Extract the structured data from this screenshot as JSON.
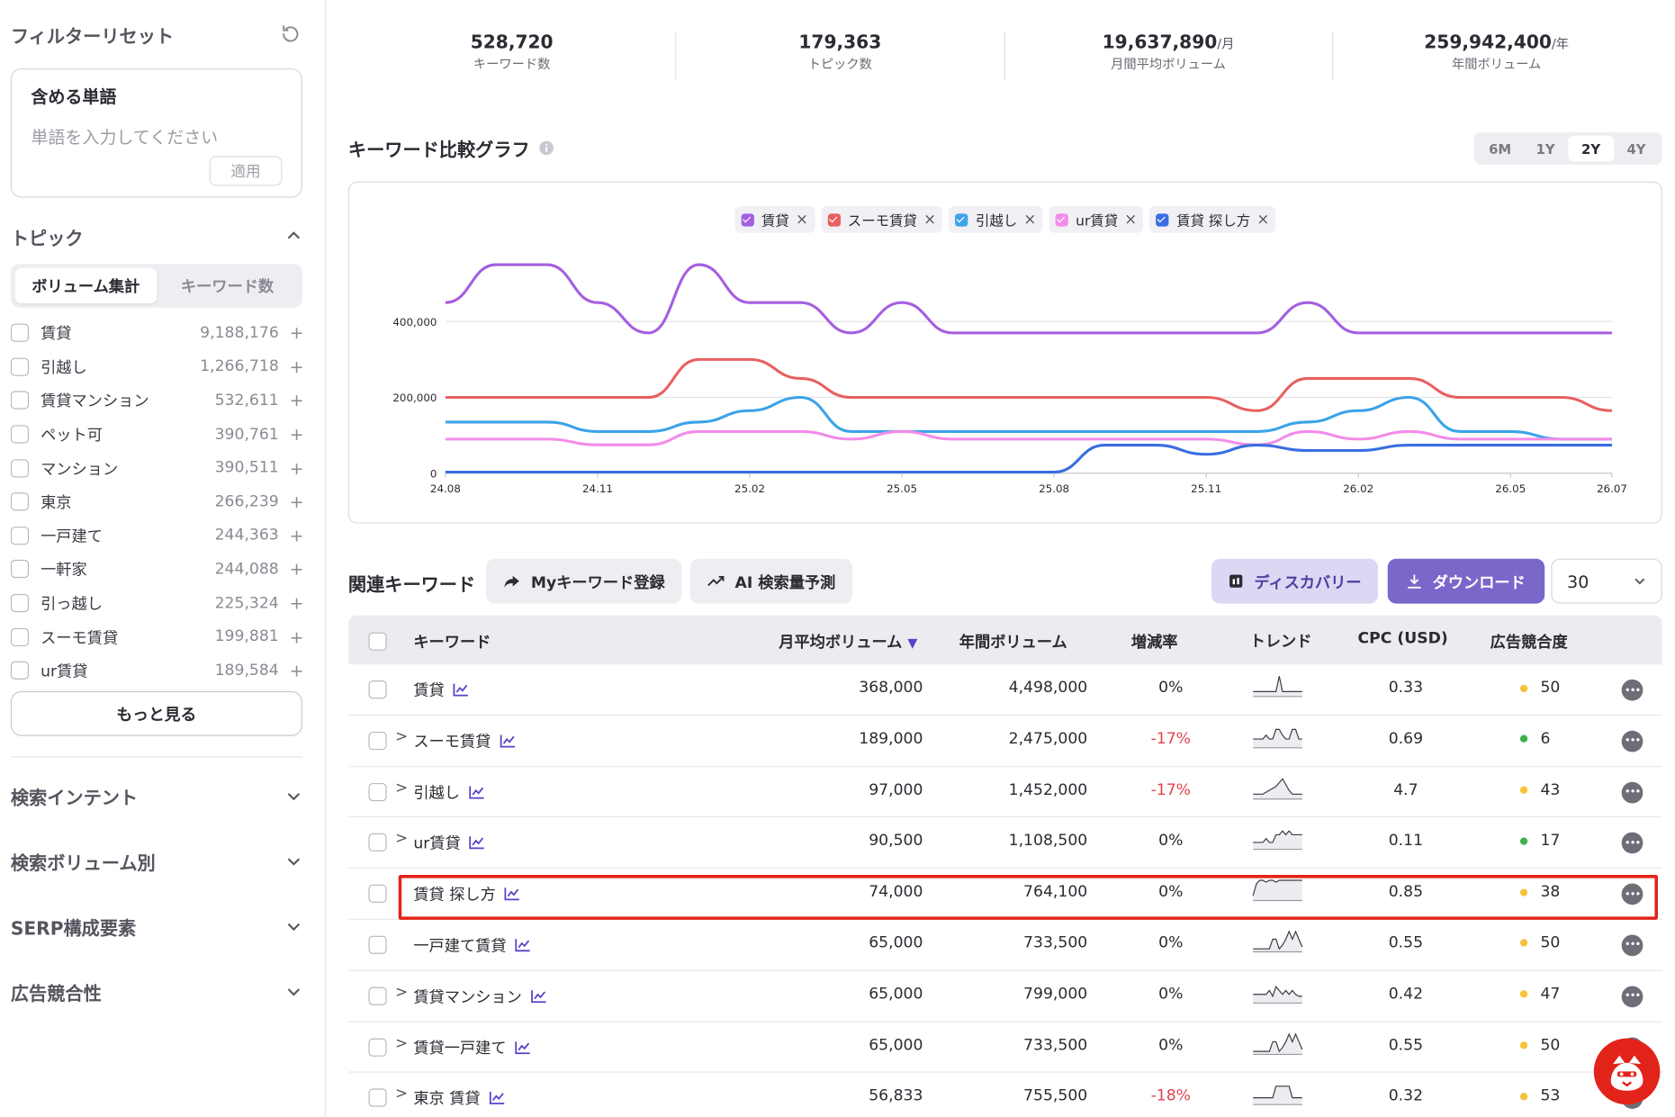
{
  "sidebar": {
    "title": "フィルターリセット",
    "include": {
      "label": "含める単語",
      "placeholder": "単語を入力してください",
      "apply": "適用"
    },
    "topic": {
      "title": "トピック",
      "tabs": [
        "ボリューム集計",
        "キーワード数"
      ],
      "items": [
        {
          "name": "賃貸",
          "count": "9,188,176"
        },
        {
          "name": "引越し",
          "count": "1,266,718"
        },
        {
          "name": "賃貸マンション",
          "count": "532,611"
        },
        {
          "name": "ペット可",
          "count": "390,761"
        },
        {
          "name": "マンション",
          "count": "390,511"
        },
        {
          "name": "東京",
          "count": "266,239"
        },
        {
          "name": "一戸建て",
          "count": "244,363"
        },
        {
          "name": "一軒家",
          "count": "244,088"
        },
        {
          "name": "引っ越し",
          "count": "225,324"
        },
        {
          "name": "スーモ賃貸",
          "count": "199,881"
        },
        {
          "name": "ur賃貸",
          "count": "189,584"
        }
      ],
      "more": "もっと見る"
    },
    "sections": [
      "検索インテント",
      "検索ボリューム別",
      "SERP構成要素",
      "広告競合性"
    ]
  },
  "stats": [
    {
      "value": "528,720",
      "unit": "",
      "label": "キーワード数"
    },
    {
      "value": "179,363",
      "unit": "",
      "label": "トピック数"
    },
    {
      "value": "19,637,890",
      "unit": "/月",
      "label": "月間平均ボリューム"
    },
    {
      "value": "259,942,400",
      "unit": "/年",
      "label": "年間ボリューム"
    }
  ],
  "graph": {
    "title": "キーワード比較グラフ",
    "ranges": [
      "6M",
      "1Y",
      "2Y",
      "4Y"
    ],
    "active_range": "2Y"
  },
  "chart_data": {
    "type": "line",
    "x": [
      "24.08",
      "24.09",
      "24.10",
      "24.11",
      "24.12",
      "25.01",
      "25.02",
      "25.03",
      "25.04",
      "25.05",
      "25.06",
      "25.07",
      "25.08",
      "25.09",
      "25.10",
      "25.11",
      "25.12",
      "26.01",
      "26.02",
      "26.03",
      "26.04",
      "26.05",
      "26.06",
      "26.07"
    ],
    "x_tick_labels": [
      "24.08",
      "24.11",
      "25.02",
      "25.05",
      "25.08",
      "25.11",
      "26.02",
      "26.05",
      "26.07"
    ],
    "y_tick_labels": [
      "0",
      "200,000",
      "400,000"
    ],
    "ylim": [
      0,
      560000
    ],
    "grid": true,
    "legend_position": "top-center",
    "series": [
      {
        "name": "賃貸",
        "color": "#a55ee0",
        "values": [
          450000,
          550000,
          550000,
          450000,
          370000,
          550000,
          450000,
          450000,
          370000,
          450000,
          370000,
          370000,
          370000,
          370000,
          370000,
          370000,
          370000,
          450000,
          370000,
          370000,
          370000,
          370000,
          370000,
          370000
        ]
      },
      {
        "name": "スーモ賃貸",
        "color": "#e86060",
        "values": [
          200000,
          200000,
          200000,
          200000,
          200000,
          300000,
          300000,
          250000,
          200000,
          200000,
          200000,
          200000,
          200000,
          200000,
          200000,
          200000,
          165000,
          250000,
          250000,
          250000,
          200000,
          200000,
          200000,
          165000
        ]
      },
      {
        "name": "引越し",
        "color": "#3ba3e8",
        "values": [
          135000,
          135000,
          135000,
          110000,
          110000,
          135000,
          165000,
          200000,
          110000,
          110000,
          110000,
          110000,
          110000,
          110000,
          110000,
          110000,
          110000,
          135000,
          165000,
          200000,
          110000,
          110000,
          90000,
          90000
        ]
      },
      {
        "name": "ur賃貸",
        "color": "#f28ce8",
        "values": [
          90000,
          90000,
          90000,
          75000,
          75000,
          110000,
          110000,
          110000,
          90000,
          110000,
          90000,
          90000,
          90000,
          90000,
          90000,
          90000,
          75000,
          110000,
          90000,
          110000,
          90000,
          90000,
          90000,
          90000
        ]
      },
      {
        "name": "賃貸 探し方",
        "color": "#3a6de0",
        "values": [
          3000,
          3000,
          3000,
          3000,
          3000,
          3000,
          3000,
          3000,
          3000,
          3000,
          3000,
          3000,
          3000,
          74000,
          74000,
          50000,
          74000,
          60000,
          60000,
          74000,
          74000,
          74000,
          74000,
          74000
        ]
      }
    ]
  },
  "related": {
    "title": "関連キーワード",
    "btn_my": "Myキーワード登録",
    "btn_ai": "AI 検索量予測",
    "btn_discovery": "ディスカバリー",
    "btn_download": "ダウンロード",
    "page_size": "30",
    "headers": {
      "keyword": "キーワード",
      "monthly": "月平均ボリューム",
      "yearly": "年間ボリューム",
      "growth": "増減率",
      "trend": "トレンド",
      "cpc": "CPC (USD)",
      "competition": "広告競合度"
    },
    "rows": [
      {
        "keyword": "賃貸",
        "expand": false,
        "monthly": "368,000",
        "yearly": "4,498,000",
        "growth": "0%",
        "neg": false,
        "cpc": "0.33",
        "comp": "50",
        "comp_color": "#f5c23a",
        "spark": [
          2,
          2,
          2,
          2,
          2,
          2,
          2,
          2,
          10,
          2,
          2,
          2,
          2,
          2,
          2,
          2
        ]
      },
      {
        "keyword": "スーモ賃貸",
        "expand": true,
        "monthly": "189,000",
        "yearly": "2,475,000",
        "growth": "-17%",
        "neg": true,
        "cpc": "0.69",
        "comp": "6",
        "comp_color": "#3cb24a",
        "spark": [
          4,
          4,
          4,
          4,
          6,
          4,
          4,
          9,
          9,
          6,
          4,
          4,
          9,
          9,
          4,
          4
        ]
      },
      {
        "keyword": "引越し",
        "expand": true,
        "monthly": "97,000",
        "yearly": "1,452,000",
        "growth": "-17%",
        "neg": true,
        "cpc": "4.7",
        "comp": "43",
        "comp_color": "#f5c23a",
        "spark": [
          2,
          2,
          2,
          2,
          3,
          4,
          5,
          6,
          8,
          10,
          7,
          4,
          2,
          2,
          2,
          2
        ]
      },
      {
        "keyword": "ur賃貸",
        "expand": true,
        "monthly": "90,500",
        "yearly": "1,108,500",
        "growth": "0%",
        "neg": false,
        "cpc": "0.11",
        "comp": "17",
        "comp_color": "#3cb24a",
        "spark": [
          3,
          3,
          3,
          3,
          5,
          3,
          3,
          7,
          7,
          9,
          7,
          9,
          7,
          7,
          7,
          7
        ]
      },
      {
        "keyword": "賃貸 探し方",
        "expand": false,
        "monthly": "74,000",
        "yearly": "764,100",
        "growth": "0%",
        "neg": false,
        "cpc": "0.85",
        "comp": "38",
        "comp_color": "#f5c23a",
        "spark": [
          2,
          8,
          10,
          10,
          9,
          10,
          10,
          9,
          10,
          10,
          10,
          10,
          10,
          10,
          10,
          10
        ]
      },
      {
        "keyword": "一戸建て賃貸",
        "expand": false,
        "monthly": "65,000",
        "yearly": "733,500",
        "growth": "0%",
        "neg": false,
        "cpc": "0.55",
        "comp": "50",
        "comp_color": "#f5c23a",
        "spark": [
          1,
          1,
          1,
          1,
          1,
          1,
          6,
          6,
          1,
          3,
          6,
          10,
          6,
          10,
          6,
          2
        ]
      },
      {
        "keyword": "賃貸マンション",
        "expand": true,
        "monthly": "65,000",
        "yearly": "799,000",
        "growth": "0%",
        "neg": false,
        "cpc": "0.42",
        "comp": "47",
        "comp_color": "#f5c23a",
        "spark": [
          4,
          4,
          4,
          4,
          4,
          6,
          3,
          8,
          6,
          4,
          6,
          4,
          6,
          4,
          3,
          3
        ]
      },
      {
        "keyword": "賃貸一戸建て",
        "expand": true,
        "monthly": "65,000",
        "yearly": "733,500",
        "growth": "0%",
        "neg": false,
        "cpc": "0.55",
        "comp": "50",
        "comp_color": "#f5c23a",
        "spark": [
          1,
          1,
          1,
          1,
          1,
          1,
          6,
          6,
          1,
          3,
          6,
          10,
          6,
          10,
          6,
          2
        ]
      },
      {
        "keyword": "東京 賃貸",
        "expand": true,
        "monthly": "56,833",
        "yearly": "755,500",
        "growth": "-18%",
        "neg": true,
        "cpc": "0.32",
        "comp": "53",
        "comp_color": "#f5c23a",
        "spark": [
          3,
          3,
          3,
          3,
          3,
          3,
          3,
          9,
          9,
          9,
          9,
          9,
          3,
          3,
          3,
          3
        ]
      }
    ]
  },
  "colors": {
    "accent": "#7b67c9",
    "highlight": "#e2231a",
    "negative": "#e0454f"
  }
}
